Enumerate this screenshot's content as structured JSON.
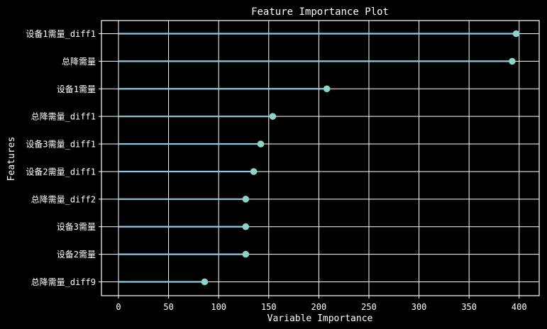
{
  "chart_data": {
    "type": "lollipop",
    "title": "Feature Importance Plot",
    "xlabel": "Variable Importance",
    "ylabel": "Features",
    "xlim": [
      -17,
      420
    ],
    "xticks": [
      0,
      50,
      100,
      150,
      200,
      250,
      300,
      350,
      400
    ],
    "categories": [
      "设备1需量_diff1",
      "总降需量",
      "设备1需量",
      "总降需量_diff1",
      "设备3需量_diff1",
      "设备2需量_diff1",
      "总降需量_diff2",
      "设备3需量",
      "设备2需量",
      "总降需量_diff9"
    ],
    "values": [
      397,
      393,
      208,
      154,
      142,
      135,
      127,
      127,
      127,
      86
    ],
    "grid": true,
    "colors": {
      "background": "#000000",
      "grid": "#ffffff",
      "line": "#8ecae6",
      "marker": "#8dd3c7",
      "text": "#ffffff"
    }
  }
}
